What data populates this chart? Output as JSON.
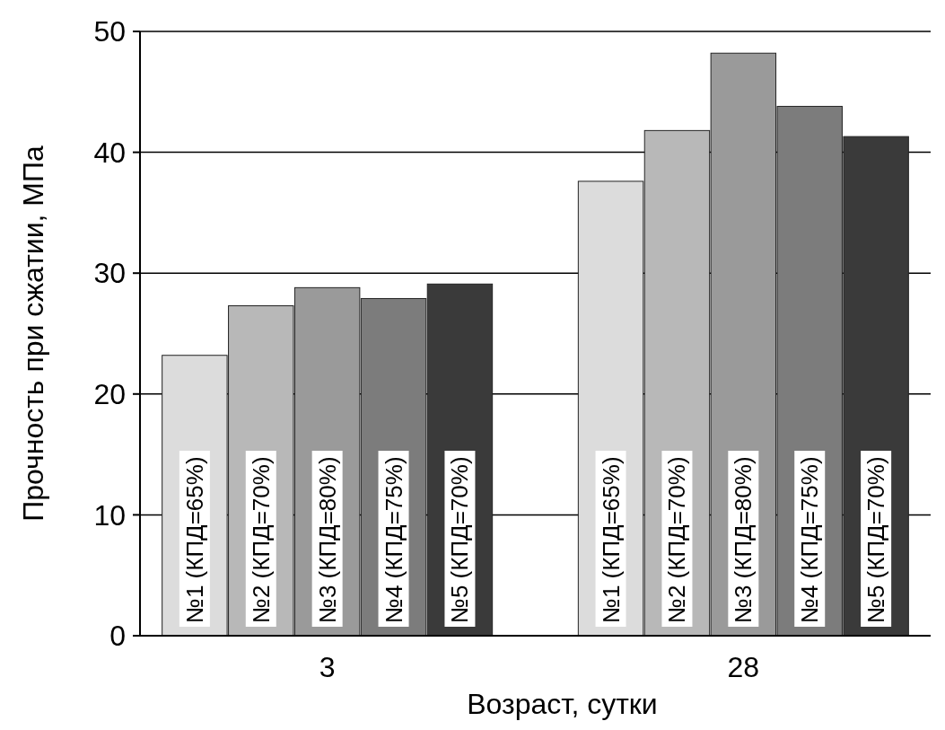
{
  "chart_data": {
    "type": "bar",
    "xlabel": "Возраст, сутки",
    "ylabel": "Прочность при сжатии, МПа",
    "categories": [
      "3",
      "28"
    ],
    "series": [
      {
        "name": "№1 (КПД=65%)",
        "color": "#dcdcdc",
        "values": [
          23.2,
          37.6
        ]
      },
      {
        "name": "№2 (КПД=70%)",
        "color": "#b8b8b8",
        "values": [
          27.3,
          41.8
        ]
      },
      {
        "name": "№3 (КПД=80%)",
        "color": "#9a9a9a",
        "values": [
          28.8,
          48.2
        ]
      },
      {
        "name": "№4 (КПД=75%)",
        "color": "#7c7c7c",
        "values": [
          27.9,
          43.8
        ]
      },
      {
        "name": "№5 (КПД=70%)",
        "color": "#3a3a3a",
        "values": [
          29.1,
          41.3
        ]
      }
    ],
    "ylim": [
      0,
      50
    ],
    "yticks": [
      0,
      10,
      20,
      30,
      40,
      50
    ],
    "grid": "y",
    "legend": false
  }
}
